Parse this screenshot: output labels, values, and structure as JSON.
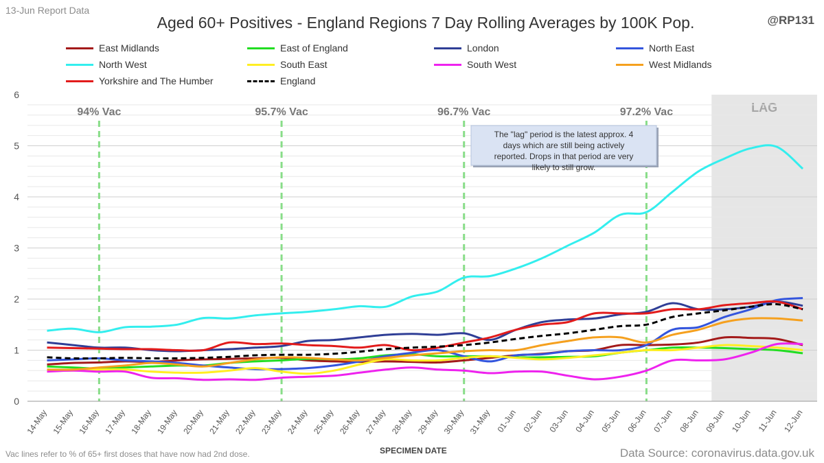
{
  "report_label": "13-Jun Report Data",
  "handle": "@RP131",
  "footnote": "Vac lines refer to % of 65+ first doses that have now had 2nd dose.",
  "source": "Data Source: coronavirus.data.gov.uk",
  "chart_data": {
    "type": "line",
    "title": "Aged 60+ Positives - England Regions 7 Day Rolling Averages by 100K Pop.",
    "xlabel": "SPECIMEN DATE",
    "ylabel": "",
    "ylim": [
      0,
      6
    ],
    "yticks": [
      0,
      1,
      2,
      3,
      4,
      5,
      6
    ],
    "grid": true,
    "legend_position": "top",
    "categories": [
      "14-May",
      "15-May",
      "16-May",
      "17-May",
      "18-May",
      "19-May",
      "20-May",
      "21-May",
      "22-May",
      "23-May",
      "24-May",
      "25-May",
      "26-May",
      "27-May",
      "28-May",
      "29-May",
      "30-May",
      "31-May",
      "01-Jun",
      "02-Jun",
      "03-Jun",
      "04-Jun",
      "05-Jun",
      "06-Jun",
      "07-Jun",
      "08-Jun",
      "09-Jun",
      "10-Jun",
      "11-Jun",
      "12-Jun"
    ],
    "series": [
      {
        "name": "East Midlands",
        "color": "#a31a1a",
        "dashed": false,
        "values": [
          0.72,
          0.75,
          0.76,
          0.78,
          0.77,
          0.8,
          0.82,
          0.83,
          0.84,
          0.85,
          0.8,
          0.78,
          0.77,
          0.78,
          0.77,
          0.76,
          0.8,
          0.85,
          0.9,
          0.93,
          0.98,
          1.0,
          1.1,
          1.1,
          1.11,
          1.15,
          1.25,
          1.24,
          1.22,
          1.1
        ]
      },
      {
        "name": "East of England",
        "color": "#22dd22",
        "dashed": false,
        "values": [
          0.68,
          0.66,
          0.64,
          0.66,
          0.68,
          0.7,
          0.7,
          0.75,
          0.78,
          0.8,
          0.83,
          0.82,
          0.84,
          0.9,
          0.92,
          0.88,
          0.88,
          0.88,
          0.86,
          0.86,
          0.87,
          0.88,
          0.95,
          1.0,
          1.05,
          1.05,
          1.04,
          1.02,
          1.0,
          0.94
        ]
      },
      {
        "name": "London",
        "color": "#2f3e96",
        "dashed": false,
        "values": [
          1.15,
          1.1,
          1.05,
          1.05,
          1.0,
          0.98,
          1.0,
          1.02,
          1.05,
          1.08,
          1.18,
          1.2,
          1.25,
          1.3,
          1.32,
          1.3,
          1.33,
          1.2,
          1.4,
          1.55,
          1.6,
          1.62,
          1.7,
          1.75,
          1.92,
          1.8,
          1.8,
          1.85,
          1.95,
          1.87
        ]
      },
      {
        "name": "North East",
        "color": "#3355dd",
        "dashed": false,
        "values": [
          0.8,
          0.82,
          0.84,
          0.8,
          0.78,
          0.75,
          0.7,
          0.66,
          0.63,
          0.63,
          0.65,
          0.7,
          0.78,
          0.88,
          0.95,
          1.0,
          0.88,
          0.78,
          0.9,
          0.92,
          0.98,
          1.0,
          1.0,
          1.1,
          1.4,
          1.45,
          1.65,
          1.8,
          1.98,
          2.02
        ]
      },
      {
        "name": "North West",
        "color": "#33eeee",
        "dashed": false,
        "values": [
          1.38,
          1.42,
          1.35,
          1.45,
          1.46,
          1.5,
          1.63,
          1.62,
          1.68,
          1.72,
          1.75,
          1.8,
          1.86,
          1.85,
          2.05,
          2.15,
          2.42,
          2.45,
          2.6,
          2.8,
          3.05,
          3.3,
          3.65,
          3.7,
          4.1,
          4.5,
          4.75,
          4.95,
          4.98,
          4.55
        ]
      },
      {
        "name": "South East",
        "color": "#ffee22",
        "dashed": false,
        "values": [
          0.6,
          0.6,
          0.62,
          0.62,
          0.58,
          0.56,
          0.56,
          0.6,
          0.65,
          0.58,
          0.54,
          0.6,
          0.72,
          0.82,
          0.8,
          0.8,
          0.85,
          0.88,
          0.85,
          0.82,
          0.85,
          0.9,
          0.95,
          1.0,
          1.0,
          1.05,
          1.1,
          1.08,
          1.05,
          1.0
        ]
      },
      {
        "name": "South West",
        "color": "#ee22ee",
        "dashed": false,
        "values": [
          0.58,
          0.6,
          0.58,
          0.58,
          0.46,
          0.45,
          0.42,
          0.43,
          0.42,
          0.46,
          0.48,
          0.5,
          0.56,
          0.62,
          0.66,
          0.62,
          0.6,
          0.55,
          0.58,
          0.58,
          0.5,
          0.43,
          0.48,
          0.6,
          0.8,
          0.8,
          0.82,
          0.95,
          1.12,
          1.12
        ]
      },
      {
        "name": "West Midlands",
        "color": "#f5a01e",
        "dashed": false,
        "values": [
          0.62,
          0.62,
          0.66,
          0.7,
          0.75,
          0.72,
          0.68,
          0.75,
          0.82,
          0.86,
          0.85,
          0.82,
          0.8,
          0.85,
          0.9,
          0.94,
          0.98,
          1.0,
          1.0,
          1.1,
          1.18,
          1.25,
          1.25,
          1.15,
          1.3,
          1.4,
          1.55,
          1.62,
          1.62,
          1.58
        ]
      },
      {
        "name": "Yorkshire and The Humber",
        "color": "#e21b1b",
        "dashed": false,
        "values": [
          1.05,
          1.04,
          1.03,
          1.02,
          1.02,
          1.0,
          1.0,
          1.15,
          1.12,
          1.13,
          1.1,
          1.08,
          1.05,
          1.1,
          1.0,
          1.05,
          1.15,
          1.25,
          1.4,
          1.5,
          1.55,
          1.72,
          1.72,
          1.72,
          1.8,
          1.8,
          1.88,
          1.92,
          1.95,
          1.8
        ]
      },
      {
        "name": "England",
        "color": "#000000",
        "dashed": true,
        "values": [
          0.86,
          0.84,
          0.84,
          0.85,
          0.84,
          0.84,
          0.85,
          0.87,
          0.9,
          0.91,
          0.91,
          0.93,
          0.97,
          1.02,
          1.05,
          1.07,
          1.1,
          1.15,
          1.22,
          1.28,
          1.33,
          1.4,
          1.47,
          1.5,
          1.65,
          1.72,
          1.78,
          1.85,
          1.9,
          1.8
        ]
      }
    ],
    "vac_lines": [
      {
        "label": "94% Vac",
        "x": "16-May"
      },
      {
        "label": "95.7% Vac",
        "x": "23-May"
      },
      {
        "label": "96.7% Vac",
        "x": "30-May"
      },
      {
        "label": "97.2% Vac",
        "x": "06-Jun"
      }
    ],
    "vac_line_color": "#88dd88",
    "lag_region": {
      "from": "08-Jun",
      "to": "12-Jun",
      "label": "LAG"
    },
    "annotation": "The \"lag\" period is the latest approx. 4 days which are still being actively reported. Drops in that period are very likely to still grow."
  }
}
